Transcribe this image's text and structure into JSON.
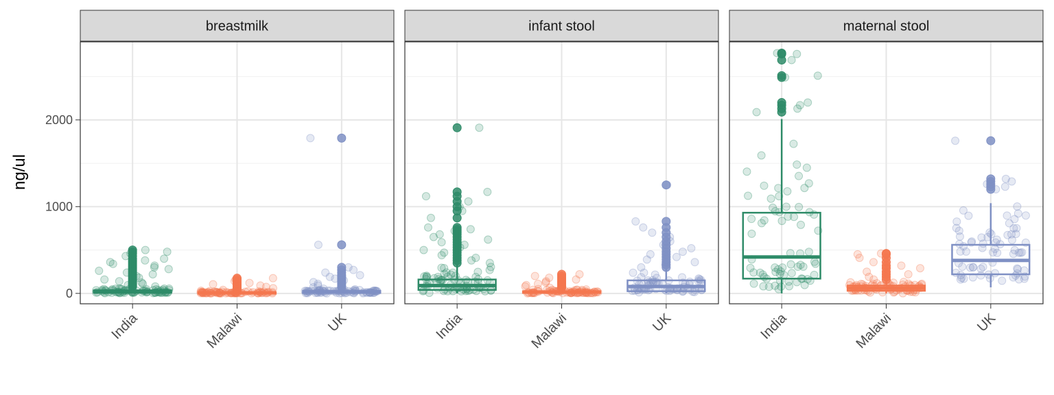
{
  "chart_data": {
    "type": "box",
    "ylabel": "ng/ul",
    "ylim": [
      -120,
      2900
    ],
    "y_ticks": [
      0,
      1000,
      2000
    ],
    "y_tick_labels": [
      "0",
      "1000",
      "2000"
    ],
    "categories": [
      "India",
      "Malawi",
      "UK"
    ],
    "colors": {
      "India": "#2e8b68",
      "Malawi": "#f4774f",
      "UK": "#7f90c4"
    },
    "legend": "none",
    "grid": true,
    "facets": [
      {
        "name": "breastmilk",
        "boxes": [
          {
            "category": "India",
            "q1": 8,
            "median": 20,
            "q3": 35,
            "whisker_low": 0,
            "whisker_high": 70,
            "outliers": [
              80,
              95,
              110,
              125,
              140,
              160,
              180,
              200,
              220,
              240,
              260,
              280,
              300,
              320,
              340,
              360,
              380,
              400,
              430,
              460,
              480,
              500
            ]
          },
          {
            "category": "Malawi",
            "q1": 2,
            "median": 6,
            "q3": 12,
            "whisker_low": 0,
            "whisker_high": 25,
            "outliers": [
              30,
              40,
              50,
              60,
              75,
              90,
              105,
              120,
              140,
              160,
              175
            ]
          },
          {
            "category": "UK",
            "q1": 5,
            "median": 15,
            "q3": 30,
            "whisker_low": 0,
            "whisker_high": 60,
            "outliers": [
              70,
              90,
              110,
              130,
              150,
              170,
              190,
              210,
              240,
              270,
              300,
              560,
              1790
            ]
          }
        ]
      },
      {
        "name": "infant stool",
        "boxes": [
          {
            "category": "India",
            "q1": 40,
            "median": 90,
            "q3": 160,
            "whisker_low": 0,
            "whisker_high": 330,
            "outliers": [
              350,
              380,
              410,
              440,
              470,
              500,
              530,
              560,
              590,
              620,
              650,
              680,
              700,
              720,
              740,
              760,
              870,
              950,
              1000,
              1060,
              1120,
              1170,
              1910
            ]
          },
          {
            "category": "Malawi",
            "q1": 5,
            "median": 15,
            "q3": 25,
            "whisker_low": 0,
            "whisker_high": 55,
            "outliers": [
              65,
              80,
              95,
              110,
              125,
              140,
              160,
              180,
              200,
              220
            ]
          },
          {
            "category": "UK",
            "q1": 25,
            "median": 80,
            "q3": 150,
            "whisker_low": 0,
            "whisker_high": 280,
            "outliers": [
              300,
              330,
              360,
              390,
              420,
              450,
              480,
              520,
              560,
              600,
              650,
              700,
              760,
              830,
              1250
            ]
          }
        ]
      },
      {
        "name": "maternal stool",
        "boxes": [
          {
            "category": "India",
            "q1": 170,
            "median": 420,
            "q3": 930,
            "whisker_low": 0,
            "whisker_high": 2010,
            "outliers": [
              2090,
              2130,
              2170,
              2200,
              2490,
              2510,
              2690,
              2760,
              2770
            ]
          },
          {
            "category": "Malawi",
            "q1": 30,
            "median": 60,
            "q3": 90,
            "whisker_low": 0,
            "whisker_high": 140,
            "outliers": [
              160,
              190,
              220,
              250,
              290,
              320,
              360,
              410,
              450,
              460
            ]
          },
          {
            "category": "UK",
            "q1": 220,
            "median": 380,
            "q3": 560,
            "whisker_low": 70,
            "whisker_high": 1040,
            "outliers": [
              1200,
              1230,
              1260,
              1290,
              1320,
              1760
            ]
          }
        ]
      }
    ]
  }
}
